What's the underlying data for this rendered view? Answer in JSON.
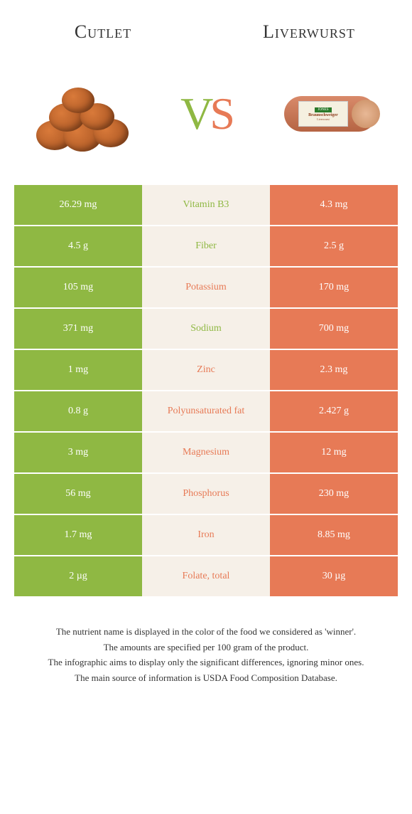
{
  "header": {
    "left_title": "Cutlet",
    "right_title": "Liverwurst",
    "vs_v": "V",
    "vs_s": "S"
  },
  "colors": {
    "green": "#8fb843",
    "orange": "#e77a56",
    "mid_bg": "#f6f0e8",
    "text_white": "#ffffff"
  },
  "sausage_label": {
    "brand": "JONES",
    "name": "Braunschweiger",
    "sub": "Liverwurst"
  },
  "rows": [
    {
      "left": "26.29 mg",
      "label": "Vitamin B3",
      "right": "4.3 mg",
      "winner": "green"
    },
    {
      "left": "4.5 g",
      "label": "Fiber",
      "right": "2.5 g",
      "winner": "green"
    },
    {
      "left": "105 mg",
      "label": "Potassium",
      "right": "170 mg",
      "winner": "orange"
    },
    {
      "left": "371 mg",
      "label": "Sodium",
      "right": "700 mg",
      "winner": "green"
    },
    {
      "left": "1 mg",
      "label": "Zinc",
      "right": "2.3 mg",
      "winner": "orange"
    },
    {
      "left": "0.8 g",
      "label": "Polyunsaturated fat",
      "right": "2.427 g",
      "winner": "orange"
    },
    {
      "left": "3 mg",
      "label": "Magnesium",
      "right": "12 mg",
      "winner": "orange"
    },
    {
      "left": "56 mg",
      "label": "Phosphorus",
      "right": "230 mg",
      "winner": "orange"
    },
    {
      "left": "1.7 mg",
      "label": "Iron",
      "right": "8.85 mg",
      "winner": "orange"
    },
    {
      "left": "2 µg",
      "label": "Folate, total",
      "right": "30 µg",
      "winner": "orange"
    }
  ],
  "footer": {
    "line1": "The nutrient name is displayed in the color of the food we considered as 'winner'.",
    "line2": "The amounts are specified per 100 gram of the product.",
    "line3": "The infographic aims to display only the significant differences, ignoring minor ones.",
    "line4": "The main source of information is USDA Food Composition Database."
  }
}
